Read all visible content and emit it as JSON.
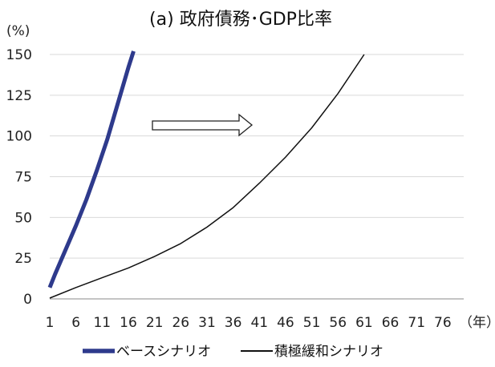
{
  "chart_data": {
    "type": "line",
    "title": "(a)  政府債務･GDP比率",
    "ylabel": "(%)",
    "xlabel": "（年）",
    "ylim": [
      0,
      150
    ],
    "xlim": [
      1,
      80
    ],
    "yticks": [
      0,
      25,
      50,
      75,
      100,
      125,
      150
    ],
    "xticks": [
      1,
      6,
      11,
      16,
      21,
      26,
      31,
      36,
      41,
      46,
      51,
      56,
      61,
      66,
      71,
      76
    ],
    "grid": true,
    "legend": "bottom",
    "annotation": "hollow-right-arrow",
    "series": [
      {
        "name": "ベースシナリオ",
        "color": "#2e3a8c",
        "x": [
          1,
          2,
          4,
          6,
          8,
          10,
          12,
          14,
          16,
          17
        ],
        "y": [
          7,
          15,
          30,
          45,
          61,
          79,
          98,
          120,
          142,
          152
        ]
      },
      {
        "name": "積極緩和シナリオ",
        "color": "#111111",
        "x": [
          1,
          6,
          11,
          16,
          21,
          26,
          31,
          36,
          41,
          46,
          51,
          56,
          61
        ],
        "y": [
          0.5,
          7,
          13,
          19,
          26,
          34,
          44,
          56,
          71,
          87,
          105,
          126,
          150
        ]
      }
    ]
  }
}
